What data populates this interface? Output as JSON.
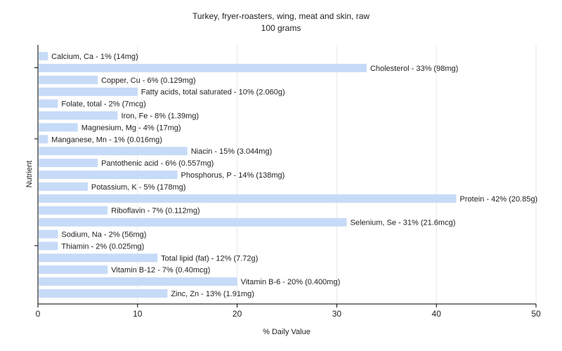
{
  "chart_data": {
    "type": "bar",
    "orientation": "horizontal",
    "title": "Turkey, fryer-roasters, wing, meat and skin, raw",
    "subtitle": "100 grams",
    "xlabel": "% Daily Value",
    "ylabel": "Nutrient",
    "xlim": [
      0,
      50
    ],
    "xticks": [
      "0",
      "10",
      "20",
      "30",
      "40",
      "50"
    ],
    "grid": true,
    "bar_color": "#c6dbf7",
    "categories": [
      "Calcium, Ca",
      "Cholesterol",
      "Copper, Cu",
      "Fatty acids, total saturated",
      "Folate, total",
      "Iron, Fe",
      "Magnesium, Mg",
      "Manganese, Mn",
      "Niacin",
      "Pantothenic acid",
      "Phosphorus, P",
      "Potassium, K",
      "Protein",
      "Riboflavin",
      "Selenium, Se",
      "Sodium, Na",
      "Thiamin",
      "Total lipid (fat)",
      "Vitamin B-12",
      "Vitamin B-6",
      "Zinc, Zn"
    ],
    "values": [
      1,
      33,
      6,
      10,
      2,
      8,
      4,
      1,
      15,
      6,
      14,
      5,
      42,
      7,
      31,
      2,
      2,
      12,
      7,
      20,
      13
    ],
    "data_labels": [
      "Calcium, Ca - 1% (14mg)",
      "Cholesterol - 33% (98mg)",
      "Copper, Cu - 6% (0.129mg)",
      "Fatty acids, total saturated - 10% (2.060g)",
      "Folate, total - 2% (7mcg)",
      "Iron, Fe - 8% (1.39mg)",
      "Magnesium, Mg - 4% (17mg)",
      "Manganese, Mn - 1% (0.016mg)",
      "Niacin - 15% (3.044mg)",
      "Pantothenic acid - 6% (0.557mg)",
      "Phosphorus, P - 14% (138mg)",
      "Potassium, K - 5% (178mg)",
      "Protein - 42% (20.85g)",
      "Riboflavin - 7% (0.112mg)",
      "Selenium, Se - 31% (21.6mcg)",
      "Sodium, Na - 2% (56mg)",
      "Thiamin - 2% (0.025mg)",
      "Total lipid (fat) - 12% (7.72g)",
      "Vitamin B-12 - 7% (0.40mcg)",
      "Vitamin B-6 - 20% (0.400mg)",
      "Zinc, Zn - 13% (1.91mg)"
    ]
  }
}
